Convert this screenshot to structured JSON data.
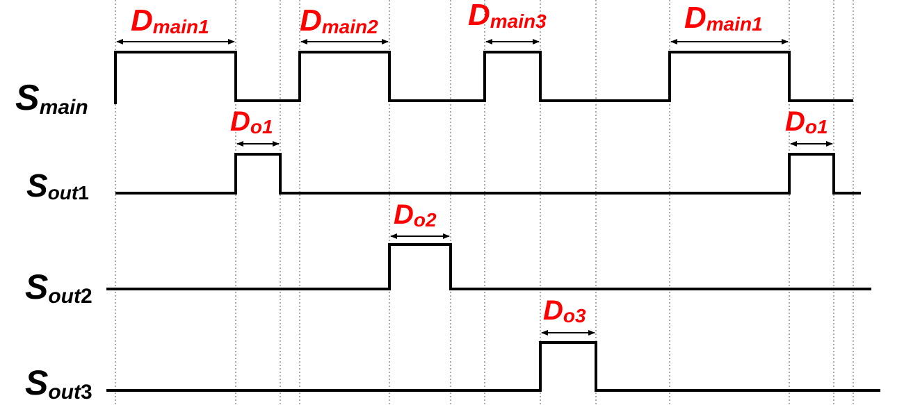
{
  "colors": {
    "waveform": "#000000",
    "duration_label": "#ff0000",
    "guide": "#555555"
  },
  "signals": {
    "main": {
      "base": "S",
      "sub": "main",
      "num": ""
    },
    "out1": {
      "base": "S",
      "sub": "out",
      "num": "1"
    },
    "out2": {
      "base": "S",
      "sub": "out",
      "num": "2"
    },
    "out3": {
      "base": "S",
      "sub": "out",
      "num": "3"
    }
  },
  "durations": {
    "dmain1_a": {
      "base": "D",
      "sub": "main",
      "num": "1"
    },
    "dmain2": {
      "base": "D",
      "sub": "main",
      "num": "2"
    },
    "dmain3": {
      "base": "D",
      "sub": "main",
      "num": "3"
    },
    "dmain1_b": {
      "base": "D",
      "sub": "main",
      "num": "1"
    },
    "do1_a": {
      "base": "D",
      "sub": "o",
      "num": "1"
    },
    "do1_b": {
      "base": "D",
      "sub": "o",
      "num": "1"
    },
    "do2": {
      "base": "D",
      "sub": "o",
      "num": "2"
    },
    "do3": {
      "base": "D",
      "sub": "o",
      "num": "3"
    }
  }
}
